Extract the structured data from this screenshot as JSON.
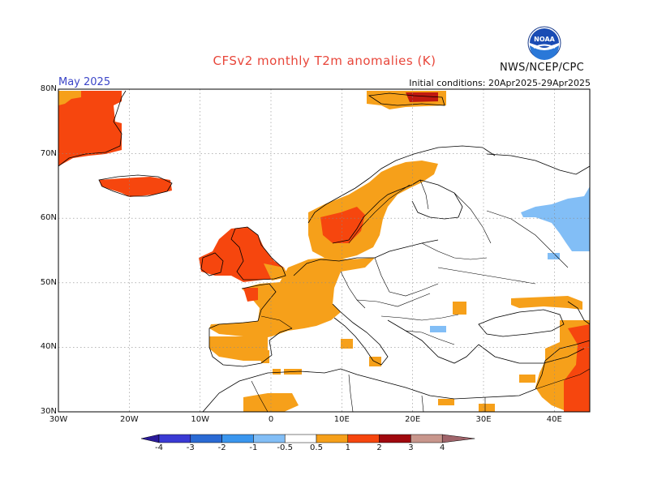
{
  "header": {
    "title": "CFSv2 monthly T2m anomalies (K)",
    "month": "May 2025",
    "initial_conditions": "Initial conditions: 20Apr2025-29Apr2025",
    "agency": "NWS/NCEP/CPC",
    "logo_text": "NOAA"
  },
  "map": {
    "lon_range": [
      -30,
      45
    ],
    "lat_range": [
      30,
      80
    ],
    "lat_ticks": [
      "30N",
      "40N",
      "50N",
      "60N",
      "70N",
      "80N"
    ],
    "lat_values": [
      30,
      40,
      50,
      60,
      70,
      80
    ],
    "lon_ticks": [
      "30W",
      "20W",
      "10W",
      "0",
      "10E",
      "20E",
      "30E",
      "40E"
    ],
    "lon_values": [
      -30,
      -20,
      -10,
      0,
      10,
      20,
      30,
      40
    ],
    "grid": "dotted"
  },
  "colorbar": {
    "levels": [
      "-4",
      "-3",
      "-2",
      "-1",
      "-0.5",
      "0.5",
      "1",
      "2",
      "3",
      "4"
    ],
    "colors": [
      "#2a1a9a",
      "#3a3ad4",
      "#2a6ad4",
      "#3a96ee",
      "#82bef6",
      "#ffffff",
      "#f6a01a",
      "#f6460e",
      "#a0080e",
      "#c8968c",
      "#a0646a"
    ]
  },
  "anomaly_colors": {
    "warm1": "#f6a01a",
    "warm2": "#f6460e",
    "cool1": "#82bef6"
  }
}
